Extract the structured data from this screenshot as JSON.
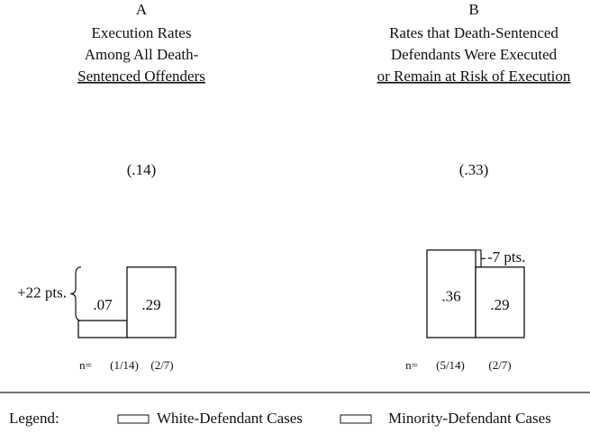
{
  "chart_data": [
    {
      "type": "bar",
      "label": "A",
      "title": [
        "Execution Rates",
        "Among All Death-",
        "Sentenced Offenders"
      ],
      "overall": "(.14)",
      "values": [
        0.07,
        0.29
      ],
      "value_labels": [
        ".07",
        ".29"
      ],
      "difference": "+22 pts.",
      "n_label": "n=",
      "categories": [
        "(1/14)",
        "(2/7)"
      ]
    },
    {
      "type": "bar",
      "label": "B",
      "title": [
        "Rates that Death-Sentenced",
        "Defendants Were Executed",
        "or Remain at Risk of Execution"
      ],
      "overall": "(.33)",
      "values": [
        0.36,
        0.29
      ],
      "value_labels": [
        ".36",
        ".29"
      ],
      "difference": "-7 pts.",
      "n_label": "n=",
      "categories": [
        "(5/14)",
        "(2/7)"
      ]
    }
  ],
  "legend": {
    "title": "Legend:",
    "entries": [
      "White-Defendant Cases",
      "Minority-Defendant Cases"
    ]
  }
}
